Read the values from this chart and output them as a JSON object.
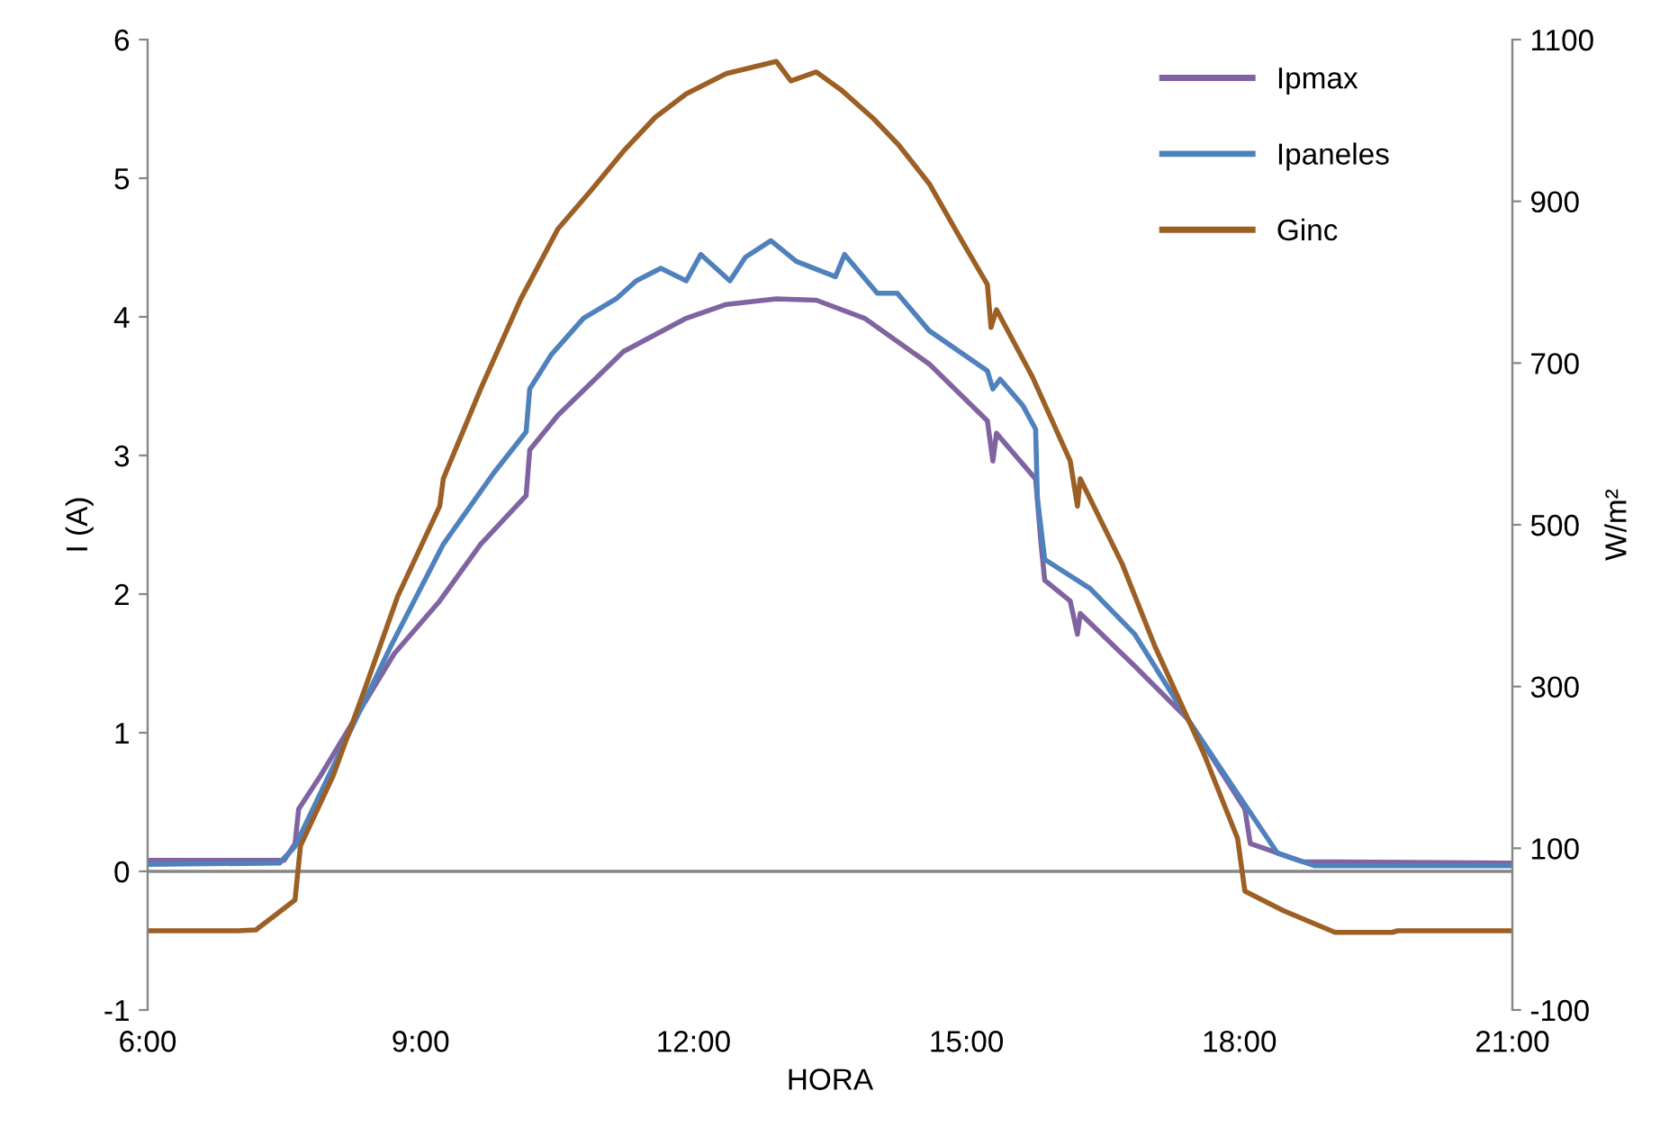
{
  "chart_data": {
    "type": "line",
    "xlabel": "HORA",
    "ylabel": "I (A)",
    "y2label": "W/m²",
    "xlim": [
      6,
      21
    ],
    "xticks": [
      {
        "value": 6,
        "label": "6:00"
      },
      {
        "value": 9,
        "label": "9:00"
      },
      {
        "value": 12,
        "label": "12:00"
      },
      {
        "value": 15,
        "label": "15:00"
      },
      {
        "value": 18,
        "label": "18:00"
      },
      {
        "value": 21,
        "label": "21:00"
      }
    ],
    "ylim": [
      -1,
      6
    ],
    "yticks": [
      -1,
      0,
      1,
      2,
      3,
      4,
      5,
      6
    ],
    "y2lim": [
      -100,
      1100
    ],
    "y2ticks": [
      -100,
      100,
      300,
      500,
      700,
      900,
      1100
    ],
    "grid": false,
    "legend": "top right",
    "marker": "none",
    "line_style": "solid",
    "ref_lines": [
      {
        "axis": "y",
        "value": 0,
        "color": "#868686"
      }
    ],
    "series": [
      {
        "name": "Ipmax",
        "color": "#8064a2",
        "x": [
          6.0,
          7.5,
          7.62,
          7.66,
          7.9,
          8.71,
          9.21,
          9.66,
          10.16,
          10.2,
          10.51,
          11.23,
          11.92,
          12.36,
          12.91,
          13.35,
          13.88,
          14.59,
          15.23,
          15.29,
          15.33,
          15.76,
          15.82,
          15.86,
          16.14,
          16.22,
          16.25,
          16.85,
          17.43,
          18.06,
          18.12,
          18.69,
          21.0
        ],
        "values": [
          0.08,
          0.08,
          0.2,
          0.45,
          0.69,
          1.57,
          1.95,
          2.36,
          2.71,
          3.04,
          3.29,
          3.75,
          3.99,
          4.09,
          4.13,
          4.12,
          3.99,
          3.66,
          3.25,
          2.96,
          3.16,
          2.83,
          2.36,
          2.1,
          1.95,
          1.71,
          1.86,
          1.48,
          1.1,
          0.45,
          0.2,
          0.07,
          0.06
        ]
      },
      {
        "name": "Ipaneles",
        "color": "#4f81bd",
        "x": [
          6.0,
          7.45,
          7.62,
          8.4,
          8.67,
          9.25,
          9.8,
          10.16,
          10.2,
          10.44,
          10.79,
          11.15,
          11.37,
          11.64,
          11.92,
          12.08,
          12.4,
          12.57,
          12.85,
          13.13,
          13.56,
          13.66,
          14.02,
          14.24,
          14.59,
          15.23,
          15.29,
          15.37,
          15.62,
          15.76,
          15.78,
          15.86,
          16.36,
          16.85,
          17.43,
          17.98,
          18.42,
          18.83,
          21.0
        ],
        "values": [
          0.05,
          0.06,
          0.18,
          1.25,
          1.62,
          2.36,
          2.87,
          3.17,
          3.48,
          3.73,
          3.99,
          4.13,
          4.26,
          4.35,
          4.26,
          4.45,
          4.26,
          4.43,
          4.55,
          4.4,
          4.29,
          4.45,
          4.17,
          4.17,
          3.9,
          3.61,
          3.48,
          3.55,
          3.36,
          3.19,
          2.69,
          2.25,
          2.04,
          1.71,
          1.1,
          0.56,
          0.13,
          0.04,
          0.04
        ]
      },
      {
        "name": "Ginc",
        "color": "#9c5f24",
        "axis": "y2",
        "x": [
          6.0,
          7.0,
          7.19,
          7.62,
          7.68,
          8.04,
          8.4,
          8.75,
          9.21,
          9.25,
          9.66,
          10.1,
          10.51,
          10.87,
          11.23,
          11.58,
          11.92,
          12.36,
          12.91,
          13.07,
          13.35,
          13.62,
          13.98,
          14.26,
          14.59,
          14.95,
          15.23,
          15.27,
          15.33,
          15.72,
          16.14,
          16.22,
          16.25,
          16.71,
          17.07,
          17.62,
          17.98,
          18.06,
          18.48,
          19.05,
          19.68,
          19.74,
          21.0
        ],
        "values": [
          -2,
          -2,
          -1,
          36,
          103,
          190,
          301,
          412,
          523,
          557,
          668,
          779,
          866,
          913,
          962,
          1004,
          1033,
          1058,
          1073,
          1049,
          1060,
          1038,
          1002,
          969,
          922,
          851,
          797,
          744,
          766,
          684,
          579,
          523,
          557,
          452,
          350,
          214,
          112,
          47,
          23,
          -4,
          -4,
          -2,
          -2
        ]
      }
    ]
  }
}
